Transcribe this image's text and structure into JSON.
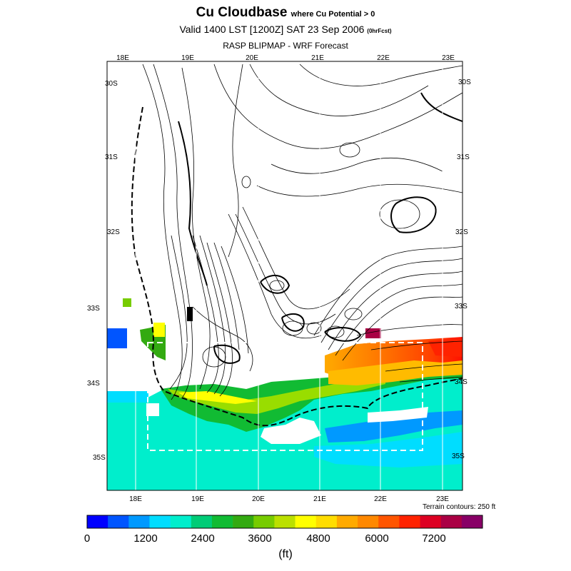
{
  "header": {
    "title": "Cu Cloudbase",
    "title_note": "where Cu Potential > 0",
    "valid": "Valid 1400 LST [1200Z] SAT 23 Sep 2006",
    "valid_note": "(0hrFcst)",
    "subtitle": "RASP BLIPMAP - WRF Forecast"
  },
  "axes": {
    "lon_top": [
      "18E",
      "19E",
      "20E",
      "21E",
      "22E",
      "23E"
    ],
    "lon_bottom": [
      "18E",
      "19E",
      "20E",
      "21E",
      "22E",
      "23E"
    ],
    "lat_left": [
      "30S",
      "31S",
      "32S",
      "33S",
      "34S",
      "35S"
    ],
    "lat_right": [
      "30S",
      "31S",
      "32S",
      "33S",
      "34S",
      "35S"
    ]
  },
  "map": {
    "terrain_contours": "Terrain contours: 250 ft",
    "land_color": "#ffffff",
    "sea_color": "#00eecc"
  },
  "legend": {
    "unit": "(ft)",
    "labels": [
      "0",
      "1200",
      "2400",
      "3600",
      "4800",
      "6000",
      "7200"
    ],
    "colors": [
      "#0000ff",
      "#0055ff",
      "#0099ff",
      "#00ddff",
      "#00eecc",
      "#00cc77",
      "#11bb33",
      "#33aa11",
      "#77cc00",
      "#bbe000",
      "#ffff00",
      "#ffdd00",
      "#ffaa00",
      "#ff8800",
      "#ff5500",
      "#ff2200",
      "#dd0022",
      "#aa0044",
      "#880066"
    ]
  }
}
